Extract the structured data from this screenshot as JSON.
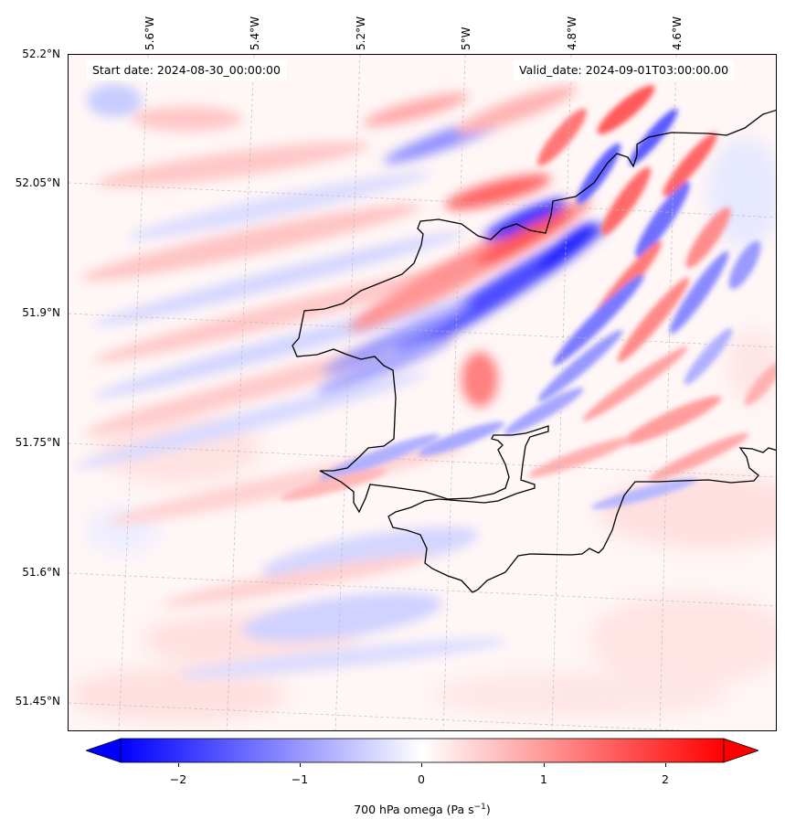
{
  "header": {
    "start_date": "Start date: 2024-08-30_00:00:00",
    "valid_date": "Valid_date: 2024-09-01T03:00:00.00"
  },
  "axes": {
    "longitude_labels": [
      "5.6°W",
      "5.4°W",
      "5.2°W",
      "5°W",
      "4.8°W",
      "4.6°W"
    ],
    "latitude_labels": [
      "52.2°N",
      "52.05°N",
      "51.9°N",
      "51.75°N",
      "51.6°N",
      "51.45°N"
    ],
    "gridlines": true
  },
  "colorbar": {
    "label_text": "700 hPa omega (Pa s",
    "label_sup": "−1",
    "label_close": ")",
    "ticks": [
      "−2",
      "−1",
      "0",
      "1",
      "2"
    ],
    "tick_values": [
      -2,
      -1,
      0,
      1,
      2
    ],
    "range": [
      -2.75,
      2.75
    ],
    "extend": "both",
    "colormap": "bwr",
    "low_color": "#0000ff",
    "mid_color": "#ffffff",
    "high_color": "#ff0000"
  },
  "map": {
    "variable": "700 hPa omega",
    "units": "Pa s-1",
    "coastline_color": "#000000"
  }
}
